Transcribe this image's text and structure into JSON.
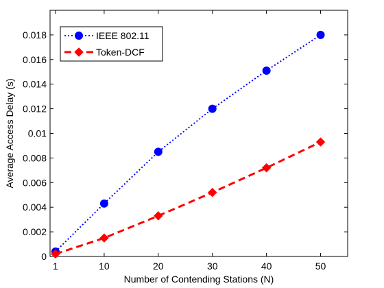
{
  "chart_data": {
    "type": "line",
    "xlabel": "Number of Contending Stations (N)",
    "ylabel": "Average Access Delay (s)",
    "x": [
      1,
      10,
      20,
      30,
      40,
      50
    ],
    "xlim": [
      0,
      55
    ],
    "ylim": [
      0,
      0.02
    ],
    "xticks": [
      1,
      10,
      20,
      30,
      40,
      50
    ],
    "yticks": [
      0,
      0.002,
      0.004,
      0.006,
      0.008,
      0.01,
      0.012,
      0.014,
      0.016,
      0.018
    ],
    "ytick_labels": [
      "0",
      "0.002",
      "0.004",
      "0.006",
      "0.008",
      "0.01",
      "0.012",
      "0.014",
      "0.016",
      "0.018"
    ],
    "grid": false,
    "legend_position": "top-left",
    "series": [
      {
        "name": "IEEE 802.11",
        "values": [
          0.0004,
          0.0043,
          0.0085,
          0.012,
          0.0151,
          0.018
        ],
        "color": "#0000ff",
        "line_style": "dotted",
        "marker": "circle"
      },
      {
        "name": "Token-DCF",
        "values": [
          0.0002,
          0.0015,
          0.0033,
          0.0052,
          0.0072,
          0.0093
        ],
        "color": "#ff0000",
        "line_style": "dashed",
        "marker": "diamond"
      }
    ]
  }
}
